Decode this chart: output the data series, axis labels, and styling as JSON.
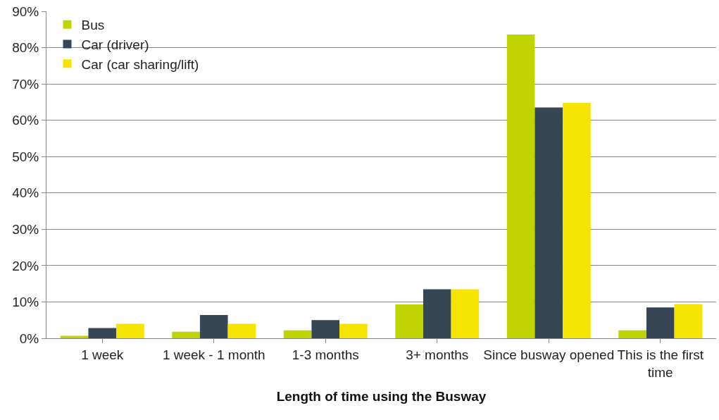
{
  "chart_data": {
    "type": "bar",
    "xlabel": "Length of time using the Busway",
    "categories": [
      "1 week",
      "1 week - 1 month",
      "1-3 months",
      "3+ months",
      "Since busway opened",
      "This is the first time"
    ],
    "series": [
      {
        "name": "Bus",
        "color": "#bfd400",
        "values": [
          0.7,
          1.8,
          2.2,
          9.3,
          83.6,
          2.2
        ]
      },
      {
        "name": "Car (driver)",
        "color": "#374655",
        "values": [
          2.8,
          6.4,
          5.0,
          13.5,
          63.5,
          8.5
        ]
      },
      {
        "name": "Car (car sharing/lift)",
        "color": "#f5e400",
        "values": [
          4.0,
          4.0,
          4.0,
          13.5,
          64.8,
          9.4
        ]
      }
    ],
    "ylim": [
      0,
      90
    ],
    "yticks": [
      {
        "value": 0,
        "label": "0%"
      },
      {
        "value": 10,
        "label": "10%"
      },
      {
        "value": 20,
        "label": "20%"
      },
      {
        "value": 30,
        "label": "30%"
      },
      {
        "value": 40,
        "label": "40%"
      },
      {
        "value": 50,
        "label": "50%"
      },
      {
        "value": 60,
        "label": "60%"
      },
      {
        "value": 70,
        "label": "70%"
      },
      {
        "value": 80,
        "label": "80%"
      },
      {
        "value": 90,
        "label": "90%"
      }
    ],
    "grid": "y",
    "legend": "top left"
  }
}
